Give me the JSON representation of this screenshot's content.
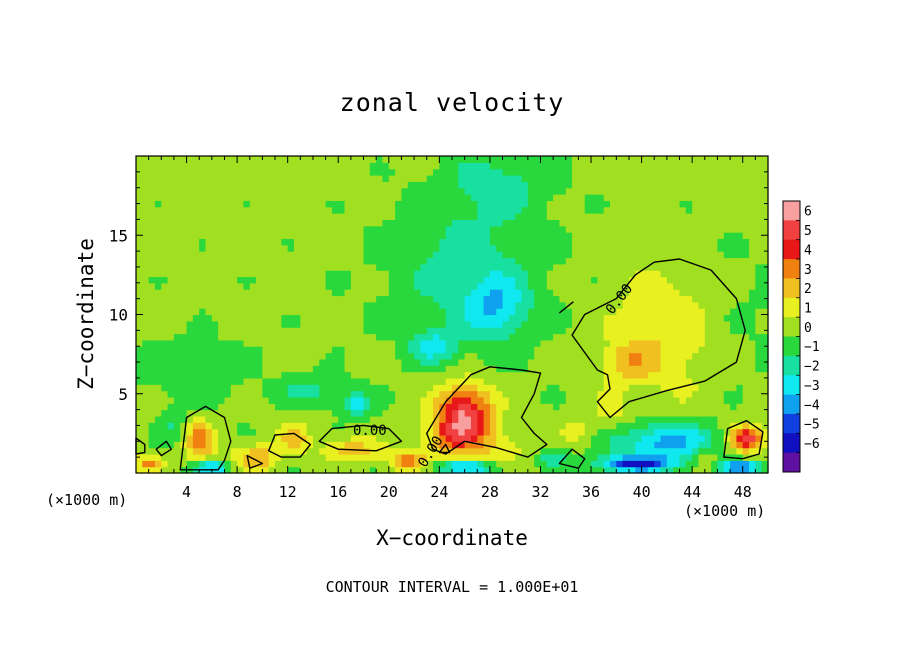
{
  "chart_data": {
    "type": "heatmap",
    "title": "zonal velocity",
    "xlabel": "X−coordinate",
    "ylabel": "Z−coordinate",
    "x_unit": "(×1000 m)",
    "xlim": [
      0,
      50
    ],
    "ylim": [
      0,
      20
    ],
    "x_ticks": [
      4,
      8,
      12,
      16,
      20,
      24,
      28,
      32,
      36,
      40,
      44,
      48
    ],
    "y_ticks": [
      5,
      10,
      15
    ],
    "colorbar": {
      "levels": [
        6,
        5,
        4,
        3,
        2,
        1,
        0,
        -1,
        -2,
        -3,
        -4,
        -5,
        -6
      ],
      "labels": [
        "6",
        "5",
        "4",
        "3",
        "2",
        "1",
        "0",
        "−1",
        "−2",
        "−3",
        "−4",
        "−5",
        "−6"
      ],
      "colors": [
        "#f8a0a0",
        "#f04040",
        "#e81818",
        "#f08010",
        "#f0c020",
        "#e8f020",
        "#a0e020",
        "#28d83c",
        "#18e0a0",
        "#10e8f0",
        "#10a0f0",
        "#1040e0",
        "#1010c0",
        "#6010a0"
      ]
    },
    "contour_labels": [
      "0.00",
      "0.00",
      "0.00"
    ],
    "contour_interval_text": "CONTOUR INTERVAL = 1.000E+01",
    "blobs": [
      {
        "x": 46,
        "y": 10,
        "sx": 8,
        "sy": 4.5,
        "v": -0.6
      },
      {
        "x": 26,
        "y": 13,
        "sx": 6,
        "sy": 5,
        "v": -1.6
      },
      {
        "x": 29,
        "y": 18.5,
        "sx": 4.5,
        "sy": 2.2,
        "v": -1.3
      },
      {
        "x": 28.5,
        "y": 10.5,
        "sx": 2.5,
        "sy": 2,
        "v": -2.2
      },
      {
        "x": 23.5,
        "y": 8,
        "sx": 1.8,
        "sy": 1,
        "v": -2.2
      },
      {
        "x": 17.5,
        "y": 4.3,
        "sx": 1.2,
        "sy": 0.7,
        "v": -2.6
      },
      {
        "x": 14,
        "y": 5.2,
        "sx": 3,
        "sy": 1,
        "v": -1.4
      },
      {
        "x": 4.5,
        "y": 6.5,
        "sx": 4,
        "sy": 2,
        "v": -1
      },
      {
        "x": 42,
        "y": 9,
        "sx": 4.5,
        "sy": 4,
        "v": 1.9
      },
      {
        "x": 39,
        "y": 7,
        "sx": 2,
        "sy": 1.3,
        "v": 1.6
      },
      {
        "x": 26,
        "y": 3.8,
        "sx": 2.2,
        "sy": 1.8,
        "v": 5.2
      },
      {
        "x": 25,
        "y": 2.2,
        "sx": 2.5,
        "sy": 1.2,
        "v": 2.2
      },
      {
        "x": 29,
        "y": 1.5,
        "sx": 2,
        "sy": 1,
        "v": 1.2
      },
      {
        "x": 5,
        "y": 2,
        "sx": 1.1,
        "sy": 1.2,
        "v": 3.2
      },
      {
        "x": 9.5,
        "y": 1,
        "sx": 1.8,
        "sy": 0.8,
        "v": 2.5
      },
      {
        "x": 12.5,
        "y": 2.2,
        "sx": 1.2,
        "sy": 0.8,
        "v": 2.2
      },
      {
        "x": 17,
        "y": 1.5,
        "sx": 2.2,
        "sy": 0.7,
        "v": 2.4
      },
      {
        "x": 21.5,
        "y": 0.8,
        "sx": 1.5,
        "sy": 0.6,
        "v": 3.2
      },
      {
        "x": 35,
        "y": 2.6,
        "sx": 1.3,
        "sy": 0.8,
        "v": 1.2
      },
      {
        "x": 37.5,
        "y": 4,
        "sx": 1.2,
        "sy": 1,
        "v": 1.2
      },
      {
        "x": 42,
        "y": 2,
        "sx": 4,
        "sy": 1.2,
        "v": -3.4
      },
      {
        "x": 39.5,
        "y": 0.6,
        "sx": 3,
        "sy": 0.5,
        "v": -4.8
      },
      {
        "x": 48.3,
        "y": 2.2,
        "sx": 1.3,
        "sy": 0.8,
        "v": 5.2
      },
      {
        "x": 48,
        "y": 0.4,
        "sx": 1.5,
        "sy": 0.4,
        "v": -4.5
      },
      {
        "x": 6,
        "y": 0.4,
        "sx": 1.5,
        "sy": 0.4,
        "v": -3.5
      },
      {
        "x": 26,
        "y": 0.4,
        "sx": 2.5,
        "sy": 0.4,
        "v": -3.5
      },
      {
        "x": 1,
        "y": 0.6,
        "sx": 1,
        "sy": 0.5,
        "v": 2.6
      },
      {
        "x": 45,
        "y": 1,
        "sx": 1,
        "sy": 0.6,
        "v": 1.6
      },
      {
        "x": 33,
        "y": 1,
        "sx": 1.2,
        "sy": 0.6,
        "v": -1.8
      },
      {
        "x": 3,
        "y": 3,
        "sx": 1,
        "sy": 1,
        "v": -1.2
      }
    ],
    "zero_contours": [
      [
        [
          36.5,
          6.5
        ],
        [
          34.5,
          8.7
        ],
        [
          35.5,
          10
        ],
        [
          38,
          11
        ],
        [
          39.5,
          12.5
        ],
        [
          41,
          13.3
        ],
        [
          43,
          13.5
        ],
        [
          45.5,
          12.8
        ],
        [
          47.5,
          11
        ],
        [
          48.2,
          9
        ],
        [
          47.5,
          7
        ],
        [
          45,
          5.8
        ],
        [
          42,
          5.2
        ],
        [
          39,
          4.5
        ],
        [
          37.5,
          3.5
        ],
        [
          36.5,
          4.5
        ],
        [
          37.5,
          5.3
        ],
        [
          37.3,
          6.2
        ]
      ],
      [
        [
          23,
          2.5
        ],
        [
          24.5,
          4.5
        ],
        [
          26.5,
          6.2
        ],
        [
          28,
          6.7
        ],
        [
          30.5,
          6.5
        ],
        [
          32,
          6.3
        ],
        [
          31.5,
          5
        ],
        [
          30.5,
          3.5
        ],
        [
          31.5,
          2.5
        ],
        [
          32.5,
          1.8
        ],
        [
          31,
          1
        ],
        [
          28.5,
          1.6
        ],
        [
          26,
          2
        ],
        [
          24.5,
          1.2
        ],
        [
          23.5,
          1.5
        ]
      ],
      [
        [
          3.5,
          0.2
        ],
        [
          4,
          3.5
        ],
        [
          5.5,
          4.2
        ],
        [
          7,
          3.5
        ],
        [
          7.5,
          2
        ],
        [
          7,
          0.8
        ],
        [
          6.5,
          0.2
        ]
      ],
      [
        [
          10.5,
          1.4
        ],
        [
          11,
          2.4
        ],
        [
          12.5,
          2.5
        ],
        [
          13.8,
          1.8
        ],
        [
          13,
          1
        ],
        [
          11.5,
          1
        ]
      ],
      [
        [
          14.5,
          2
        ],
        [
          15.5,
          2.8
        ],
        [
          18,
          3
        ],
        [
          20,
          2.8
        ],
        [
          21,
          2
        ],
        [
          19,
          1.4
        ],
        [
          16,
          1.5
        ]
      ],
      [
        [
          46.5,
          1
        ],
        [
          46.8,
          2.8
        ],
        [
          48.3,
          3.3
        ],
        [
          49.6,
          2.6
        ],
        [
          49.3,
          1.2
        ],
        [
          48,
          0.9
        ]
      ],
      [
        [
          0,
          2.2
        ],
        [
          0.7,
          1.8
        ],
        [
          0.7,
          1.3
        ],
        [
          0,
          1.2
        ]
      ],
      [
        [
          1.6,
          1.5
        ],
        [
          2.4,
          2
        ],
        [
          2.8,
          1.5
        ],
        [
          2,
          1.1
        ]
      ],
      [
        [
          8.8,
          1.1
        ],
        [
          10,
          0.6
        ],
        [
          9,
          0.3
        ]
      ],
      [
        [
          33.5,
          0.6
        ],
        [
          34.5,
          1.5
        ],
        [
          35.5,
          0.9
        ],
        [
          35,
          0.3
        ]
      ],
      [
        [
          33.5,
          10.1
        ],
        [
          34.6,
          10.8
        ]
      ],
      [
        [
          24,
          1.3
        ],
        [
          24.5,
          1.8
        ],
        [
          24.8,
          1.3
        ]
      ]
    ]
  }
}
